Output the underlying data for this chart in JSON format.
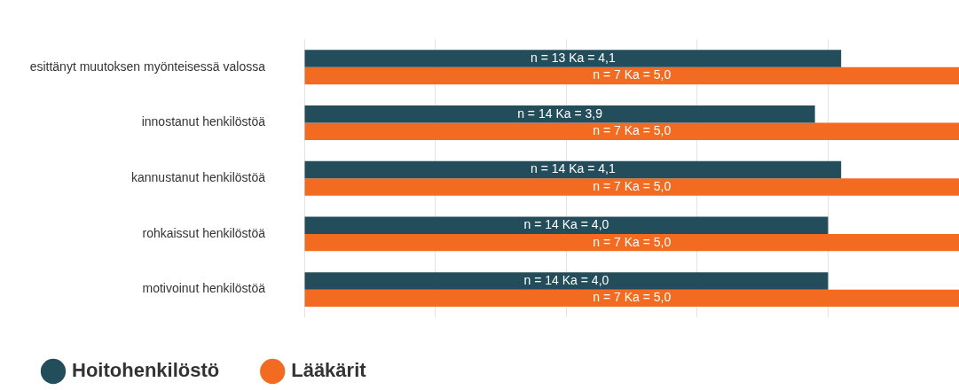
{
  "chart_data": {
    "type": "bar",
    "orientation": "horizontal",
    "categories": [
      "esittänyt muutoksen myönteisessä valossa",
      "innostanut henkilöstöä",
      "kannustanut henkilöstöä",
      "rohkaissut henkilöstöä",
      "motivoinut henkilöstöä"
    ],
    "series": [
      {
        "name": "Hoitohenkilöstö",
        "color": "#234d5a",
        "values": [
          4.1,
          3.9,
          4.1,
          4.0,
          4.0
        ],
        "value_labels": [
          "n = 13 Ka = 4,1",
          "n = 14 Ka = 3,9",
          "n = 14 Ka = 4,1",
          "n = 14 Ka = 4,0",
          "n = 14 Ka = 4,0"
        ]
      },
      {
        "name": "Lääkärit",
        "color": "#f26b21",
        "values": [
          5.0,
          5.0,
          5.0,
          5.0,
          5.0
        ],
        "value_labels": [
          "n = 7 Ka = 5,0",
          "n = 7 Ka = 5,0",
          "n = 7 Ka = 5,0",
          "n = 7 Ka = 5,0",
          "n = 7 Ka = 5,0"
        ]
      }
    ],
    "xlim": [
      0,
      5
    ],
    "xticks": [
      {
        "value": 0,
        "label": null
      },
      {
        "value": 1,
        "label": null
      },
      {
        "value": 2,
        "label": null
      },
      {
        "value": 3,
        "label": null
      },
      {
        "value": 4,
        "label": null
      }
    ],
    "grid": "x",
    "legend": "bottom left",
    "tick_labels": "y"
  }
}
